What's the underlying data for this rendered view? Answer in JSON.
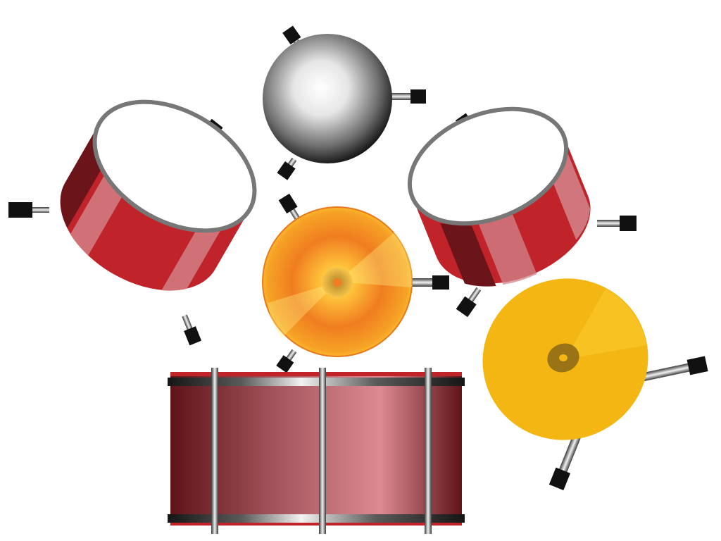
{
  "app": {
    "kind": "drum-kit",
    "instruments": [
      {
        "id": "tom-left",
        "label": "",
        "color": "#c0232a"
      },
      {
        "id": "sphere-top",
        "label": "",
        "color": "#7a7a7a"
      },
      {
        "id": "tom-right",
        "label": "",
        "color": "#c0232a"
      },
      {
        "id": "cymbal-center",
        "label": "",
        "color": "#f2a21a"
      },
      {
        "id": "cymbal-right",
        "label": "",
        "color": "#f3b613"
      },
      {
        "id": "bass-drum",
        "label": "",
        "color": "#9c3a45"
      }
    ]
  },
  "colors": {
    "background": "#ffffff",
    "drum_red": "#c0232a",
    "drum_red_dark": "#6b1419",
    "drum_highlight": "#d2858b",
    "cymbal_orange": "#f07d20",
    "cymbal_yellow": "#f8c22a",
    "hardware_dark": "#111111",
    "hardware_light": "#d8d8d8"
  }
}
